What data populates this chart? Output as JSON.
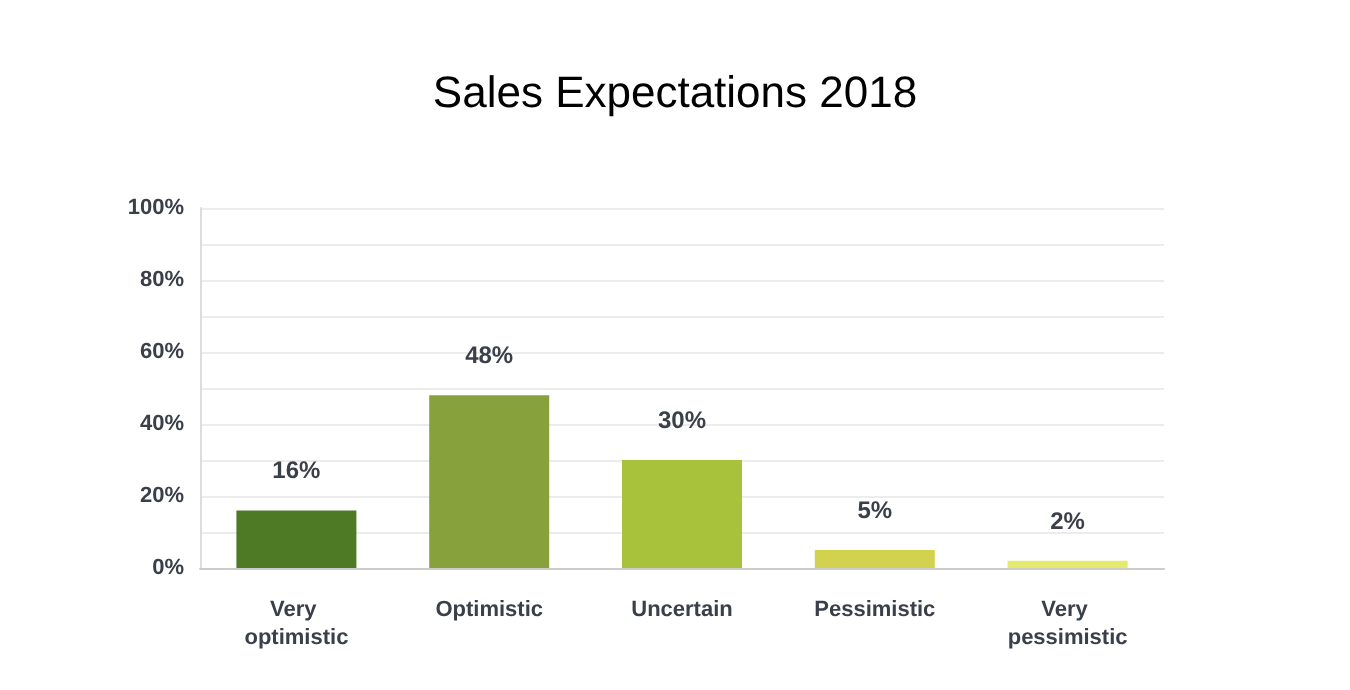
{
  "chart_data": {
    "type": "bar",
    "title": "Sales Expectations 2018",
    "categories": [
      "Very optimistic",
      "Optimistic",
      "Uncertain",
      "Pessimistic",
      "Very pessimistic"
    ],
    "values": [
      16,
      48,
      30,
      5,
      2
    ],
    "value_labels": [
      "16%",
      "48%",
      "30%",
      "5%",
      "2%"
    ],
    "colors": [
      "#4e7a26",
      "#87a13c",
      "#a8c23c",
      "#d2d24e",
      "#e3ea6e"
    ],
    "ylim": [
      0,
      100
    ],
    "yticks": [
      {
        "value": 0,
        "label": "0%"
      },
      {
        "value": 10,
        "label": null
      },
      {
        "value": 20,
        "label": "20%"
      },
      {
        "value": 30,
        "label": null
      },
      {
        "value": 40,
        "label": "40%"
      },
      {
        "value": 50,
        "label": null
      },
      {
        "value": 60,
        "label": "60%"
      },
      {
        "value": 70,
        "label": null
      },
      {
        "value": 80,
        "label": "80%"
      },
      {
        "value": 90,
        "label": null
      },
      {
        "value": 100,
        "label": "100%"
      }
    ],
    "grid": "y"
  }
}
